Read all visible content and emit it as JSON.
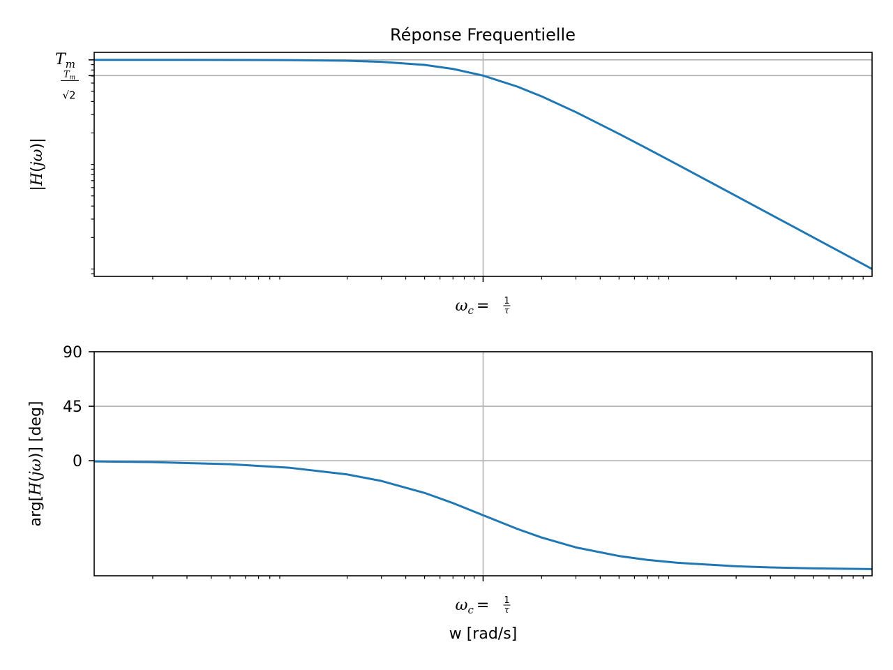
{
  "figure": {
    "title": "Réponse Frequentielle"
  },
  "chart_data": [
    {
      "type": "line",
      "title": "Réponse Frequentielle",
      "xscale": "log",
      "yscale": "log",
      "xlabel": "",
      "ylabel": "|H(jω)|",
      "xlim": [
        0.01,
        100
      ],
      "ylim": [
        0.0085,
        1.18
      ],
      "grid": true,
      "color": "#1f77b4",
      "x_ticks": [
        {
          "value": 1,
          "label": "ω_c = 1/τ",
          "main": "ω",
          "sub": "c",
          "eq": "=",
          "num": "1",
          "den": "τ"
        }
      ],
      "y_ticks": [
        {
          "value": 1,
          "label": "T_m",
          "main": "T",
          "sub": "m"
        },
        {
          "value": 0.7071,
          "label": "T_m/√2",
          "num_main": "T",
          "num_sub": "m",
          "den": "√2"
        }
      ],
      "y_label_parts": {
        "pre": "|",
        "main": "H",
        "mid": "(",
        "var": "jω",
        "post": ")|"
      },
      "x_minor_per_decade": [
        2,
        3,
        4,
        5,
        6,
        7,
        8,
        9
      ],
      "series": [
        {
          "x": [
            0.01,
            0.02,
            0.05,
            0.1,
            0.2,
            0.3,
            0.5,
            0.7,
            1,
            1.5,
            2,
            3,
            5,
            7,
            10,
            20,
            30,
            50,
            70,
            100
          ],
          "y": [
            1.0,
            0.9998,
            0.9988,
            0.995,
            0.9806,
            0.9578,
            0.8944,
            0.8192,
            0.7071,
            0.5547,
            0.4472,
            0.3162,
            0.1961,
            0.1414,
            0.0995,
            0.0499,
            0.0333,
            0.02,
            0.0143,
            0.01
          ]
        }
      ]
    },
    {
      "type": "line",
      "title": "",
      "xscale": "log",
      "yscale": "linear",
      "xlabel": "w [rad/s]",
      "ylabel": "arg[H(jω)] [deg]",
      "xlim": [
        0.01,
        100
      ],
      "ylim": [
        -95,
        90
      ],
      "grid": true,
      "color": "#1f77b4",
      "x_ticks": [
        {
          "value": 1,
          "label": "ω_c = 1/τ",
          "main": "ω",
          "sub": "c",
          "eq": "=",
          "num": "1",
          "den": "τ"
        }
      ],
      "y_ticks": [
        {
          "value": 90,
          "label": "90"
        },
        {
          "value": 45,
          "label": "45"
        },
        {
          "value": 0,
          "label": "0"
        }
      ],
      "y_label_parts": {
        "pre": "arg[",
        "main": "H",
        "mid": "(",
        "var": "jω",
        "post": ")] [deg]"
      },
      "x_minor_per_decade": [
        2,
        3,
        4,
        5,
        6,
        7,
        8,
        9
      ],
      "series": [
        {
          "x": [
            0.01,
            0.02,
            0.05,
            0.1,
            0.2,
            0.3,
            0.5,
            0.7,
            1,
            1.5,
            2,
            3,
            5,
            7,
            10,
            20,
            30,
            50,
            70,
            100
          ],
          "y": [
            -0.57,
            -1.15,
            -2.86,
            -5.71,
            -11.31,
            -16.7,
            -26.57,
            -34.99,
            -45,
            -56.31,
            -63.43,
            -71.57,
            -78.69,
            -81.87,
            -84.29,
            -87.14,
            -88.09,
            -88.85,
            -89.18,
            -89.43
          ]
        }
      ]
    }
  ]
}
